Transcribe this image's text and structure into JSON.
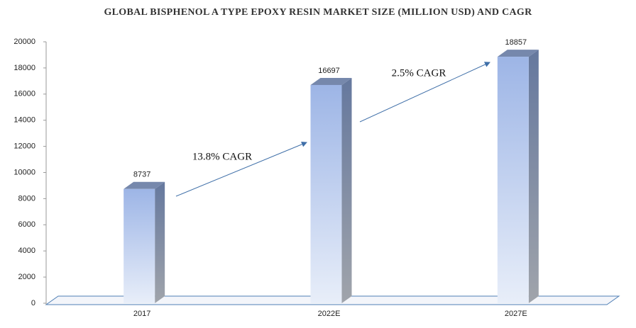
{
  "chart_data": {
    "type": "bar3d",
    "title": "GLOBAL BISPHENOL A TYPE EPOXY RESIN MARKET SIZE (MILLION USD) AND CAGR",
    "categories": [
      "2017",
      "2022E",
      "2027E"
    ],
    "values": [
      8737,
      16697,
      18857
    ],
    "color": "#9db5e6",
    "ylim": [
      0,
      20000
    ],
    "yticks": [
      0,
      2000,
      4000,
      6000,
      8000,
      10000,
      12000,
      14000,
      16000,
      18000,
      20000
    ],
    "annotations": [
      "13.8% CAGR",
      "2.5% CAGR"
    ]
  }
}
